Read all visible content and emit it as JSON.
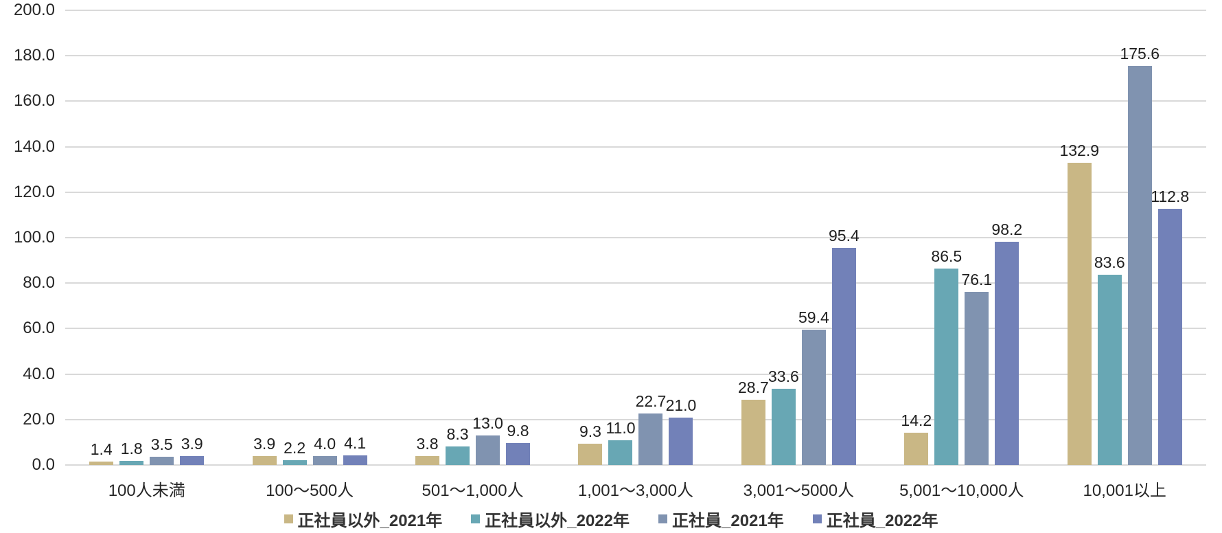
{
  "chart_data": {
    "type": "bar",
    "title": "",
    "xlabel": "",
    "ylabel": "",
    "categories": [
      "100人未満",
      "100〜500人",
      "501〜1,000人",
      "1,001〜3,000人",
      "3,001〜5000人",
      "5,001〜10,000人",
      "10,001以上"
    ],
    "series": [
      {
        "name": "正社員以外_2021年",
        "color": "#C9B785",
        "values": [
          1.4,
          3.9,
          3.8,
          9.3,
          28.7,
          14.2,
          132.9
        ]
      },
      {
        "name": "正社員以外_2022年",
        "color": "#68A7B4",
        "values": [
          1.8,
          2.2,
          8.3,
          11.0,
          33.6,
          86.5,
          83.6
        ]
      },
      {
        "name": "正社員_2021年",
        "color": "#8093B0",
        "values": [
          3.5,
          4.0,
          13.0,
          22.7,
          59.4,
          76.1,
          175.6
        ]
      },
      {
        "name": "正社員_2022年",
        "color": "#7281B8",
        "values": [
          3.9,
          4.1,
          9.8,
          21.0,
          95.4,
          98.2,
          112.8
        ]
      }
    ],
    "ylim": [
      0,
      200
    ],
    "ytick_step": 20,
    "ytick_decimals": 1,
    "value_label_decimals": 1,
    "grid": true,
    "legend_position": "bottom"
  },
  "colors": {
    "background": "#ffffff",
    "gridline": "#d9d9d9",
    "text": "#262626"
  }
}
